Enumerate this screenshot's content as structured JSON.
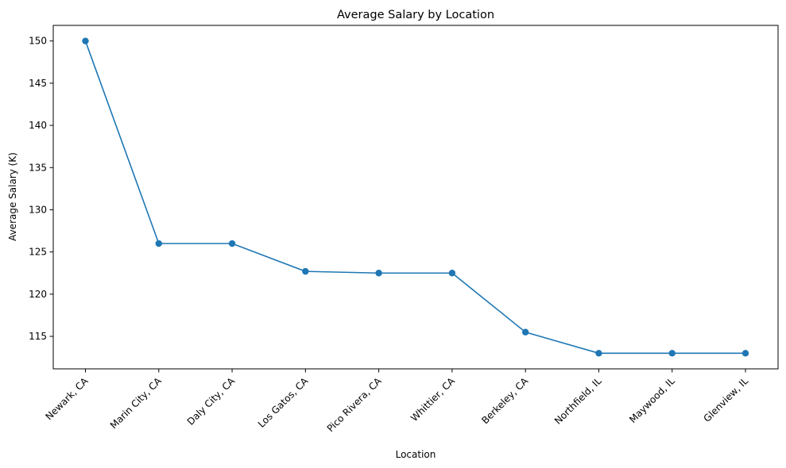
{
  "chart_data": {
    "type": "line",
    "title": "Average Salary by Location",
    "xlabel": "Location",
    "ylabel": "Average Salary (K)",
    "categories": [
      "Newark, CA",
      "Marin City, CA",
      "Daly City, CA",
      "Los Gatos, CA",
      "Pico Rivera, CA",
      "Whittier, CA",
      "Berkeley, CA",
      "Northfield, IL",
      "Maywood, IL",
      "Glenview, IL"
    ],
    "values": [
      150.0,
      126.0,
      126.0,
      122.7,
      122.5,
      122.5,
      115.5,
      113.0,
      113.0,
      113.0
    ],
    "yticks": [
      115,
      120,
      125,
      130,
      135,
      140,
      145,
      150
    ],
    "ylim": [
      111.15,
      151.85
    ],
    "grid": false,
    "color": "#1f77b4",
    "marker": "circle"
  }
}
